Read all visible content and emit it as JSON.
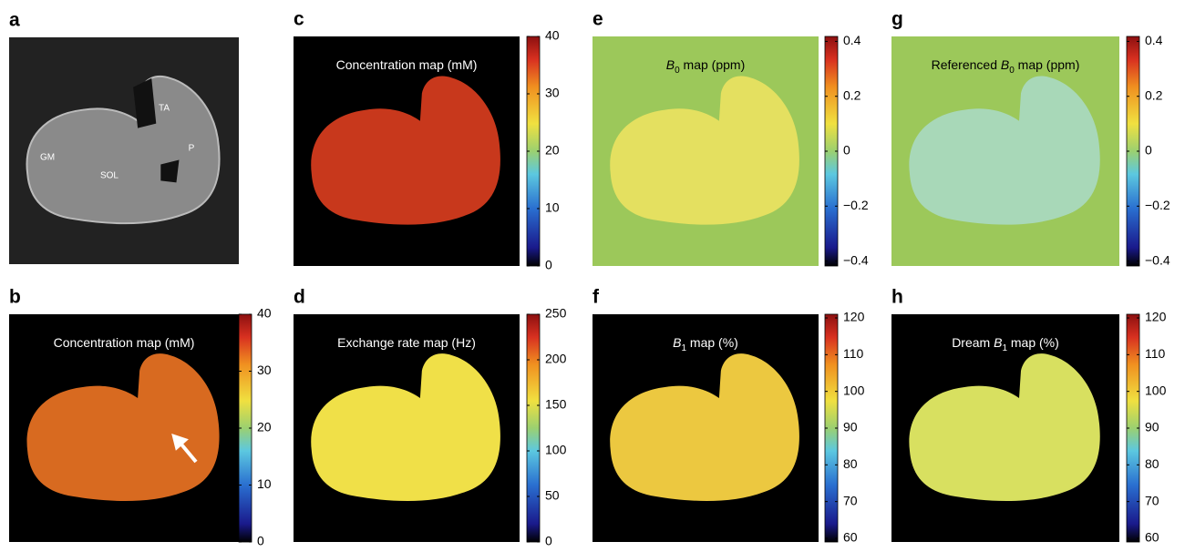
{
  "panels": [
    {
      "label": "a",
      "annotations": [
        "TA",
        "P",
        "GM",
        "SOL"
      ]
    },
    {
      "label": "b",
      "title_parts": [
        {
          "text": "Concentration map (mM)"
        }
      ],
      "colorbar": {
        "lim": [
          0,
          40
        ],
        "ticks": [
          0,
          10,
          20,
          30,
          40
        ]
      }
    },
    {
      "label": "c",
      "title_parts": [
        {
          "text": "Concentration map (mM)"
        }
      ],
      "colorbar": {
        "lim": [
          0,
          40
        ],
        "ticks": [
          0,
          10,
          20,
          30,
          40
        ]
      }
    },
    {
      "label": "d",
      "title_parts": [
        {
          "text": "Exchange rate map (Hz)"
        }
      ],
      "colorbar": {
        "lim": [
          0,
          250
        ],
        "ticks": [
          0,
          50,
          100,
          150,
          200,
          250
        ]
      }
    },
    {
      "label": "e",
      "title_parts": [
        {
          "text": "B",
          "style": "italic"
        },
        {
          "text": "0",
          "style": "sub"
        },
        {
          "text": " map (ppm)"
        }
      ],
      "colorbar": {
        "lim": [
          -0.418,
          0.418
        ],
        "ticks": [
          {
            "value": -0.4,
            "label": "−0.4"
          },
          {
            "value": -0.2,
            "label": "−0.2"
          },
          0,
          0.2,
          0.4
        ]
      }
    },
    {
      "label": "f",
      "title_parts": [
        {
          "text": "B",
          "style": "italic"
        },
        {
          "text": "1",
          "style": "sub"
        },
        {
          "text": " map (%)"
        }
      ],
      "colorbar": {
        "lim": [
          59,
          121
        ],
        "ticks": [
          60,
          70,
          80,
          90,
          100,
          110,
          120
        ]
      }
    },
    {
      "label": "g",
      "title_parts": [
        {
          "text": "Referenced "
        },
        {
          "text": "B",
          "style": "italic"
        },
        {
          "text": "0",
          "style": "sub"
        },
        {
          "text": " map (ppm)"
        }
      ],
      "colorbar": {
        "lim": [
          -0.418,
          0.418
        ],
        "ticks": [
          {
            "value": -0.4,
            "label": "−0.4"
          },
          {
            "value": -0.2,
            "label": "−0.2"
          },
          0,
          0.2,
          0.4
        ]
      }
    },
    {
      "label": "h",
      "title_parts": [
        {
          "text": "Dream "
        },
        {
          "text": "B",
          "style": "italic"
        },
        {
          "text": "1",
          "style": "sub"
        },
        {
          "text": " map (%)"
        }
      ],
      "colorbar": {
        "lim": [
          59,
          121
        ],
        "ticks": [
          60,
          70,
          80,
          90,
          100,
          110,
          120
        ]
      }
    }
  ]
}
